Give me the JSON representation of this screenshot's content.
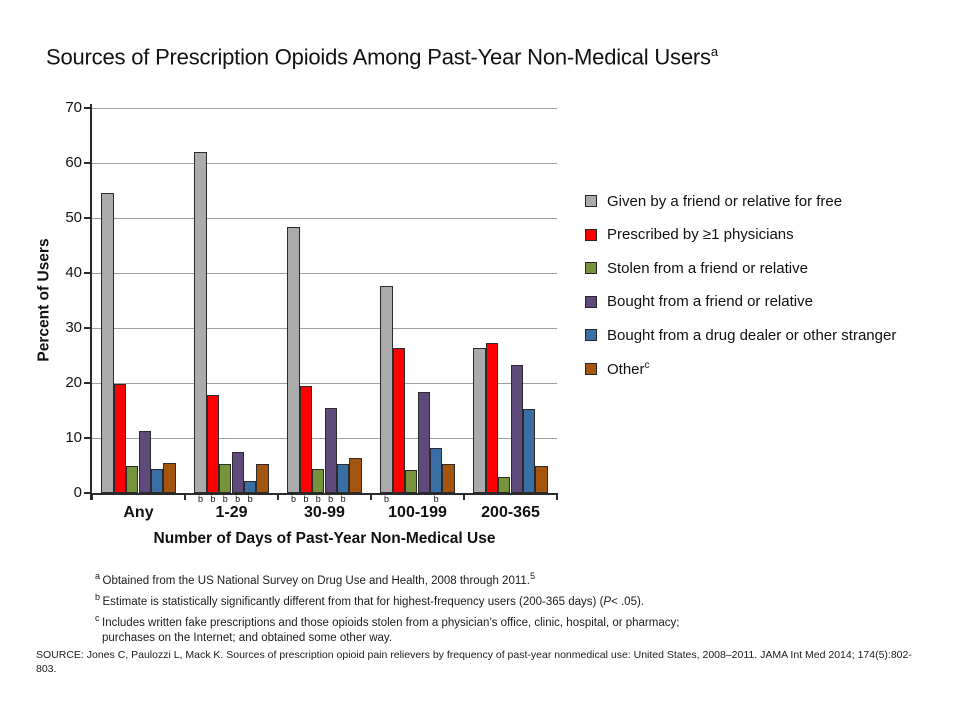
{
  "title": {
    "text": "Sources of Prescription Opioids Among Past-Year Non-Medical Users",
    "superscript": "a"
  },
  "chart_data": {
    "type": "bar",
    "categories": [
      "Any",
      "1-29",
      "30-99",
      "100-199",
      "200-365"
    ],
    "series": [
      {
        "name": "Given by a friend or relative for free",
        "color": "#ababab",
        "values": [
          54.5,
          62.0,
          48.3,
          37.6,
          26.3
        ]
      },
      {
        "name": "Prescribed by ≥1 physicians",
        "color": "#fe0000",
        "values": [
          19.8,
          17.8,
          19.5,
          26.4,
          27.3
        ]
      },
      {
        "name": "Stolen from a friend or relative",
        "color": "#77933c",
        "values": [
          4.9,
          5.2,
          4.4,
          4.1,
          2.9
        ]
      },
      {
        "name": "Bought from a friend or relative",
        "color": "#604a7b",
        "values": [
          11.2,
          7.5,
          15.5,
          18.3,
          23.2
        ]
      },
      {
        "name": "Bought from a drug dealer or other stranger",
        "color": "#3a6fa6",
        "values": [
          4.3,
          2.2,
          5.3,
          8.2,
          15.2
        ]
      },
      {
        "name": "Other",
        "superscript": "c",
        "color": "#a5560e",
        "values": [
          5.4,
          5.3,
          6.4,
          5.2,
          5.0
        ]
      }
    ],
    "xlabel": "Number of Days of Past-Year Non-Medical Use",
    "ylabel": "Percent of Users",
    "ylim": [
      0,
      70
    ],
    "ytick_step": 10,
    "grid": "horizontal",
    "legend_position": "right",
    "significance_marker": "b",
    "significance": [
      [],
      [
        0,
        1,
        2,
        3,
        4
      ],
      [
        0,
        1,
        2,
        3,
        4
      ],
      [
        0,
        4
      ],
      []
    ]
  },
  "footnotes": [
    {
      "marker": "a",
      "segments": [
        {
          "text": "Obtained from the US National Survey on Drug Use and Health, 2008 through 2011."
        },
        {
          "text": "5",
          "sup": true
        }
      ]
    },
    {
      "marker": "b",
      "segments": [
        {
          "text": "Estimate is statistically significantly different from that for highest-frequency users (200-365 days) ("
        },
        {
          "text": "P",
          "italic": true
        },
        {
          "text": "< .05)."
        }
      ]
    },
    {
      "marker": "c",
      "segments": [
        {
          "text": "Includes written fake prescriptions and those opioids stolen from a physician’s office, clinic, hospital, or pharmacy; purchases on the Internet; and obtained some other way."
        }
      ]
    }
  ],
  "source": "SOURCE: Jones C, Paulozzi L, Mack K. Sources of prescription opioid pain relievers by frequency of past-year nonmedical use: United States, 2008–2011. JAMA Int Med 2014; 174(5):802-803."
}
